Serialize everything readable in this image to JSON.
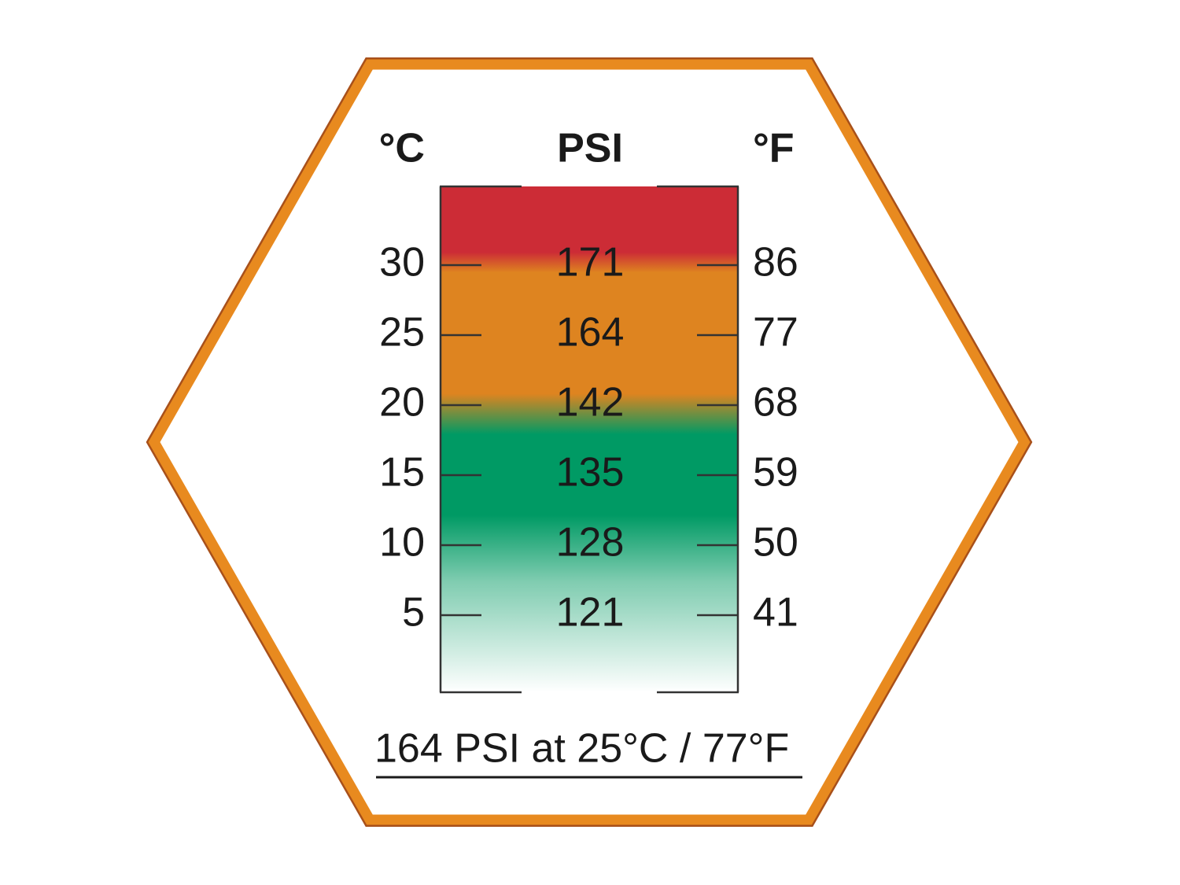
{
  "headers": {
    "celsius": "°C",
    "pressure": "PSI",
    "fahrenheit": "°F"
  },
  "rows": [
    {
      "celsius": 30,
      "psi": 171,
      "fahrenheit": 86
    },
    {
      "celsius": 25,
      "psi": 164,
      "fahrenheit": 77
    },
    {
      "celsius": 20,
      "psi": 142,
      "fahrenheit": 68
    },
    {
      "celsius": 15,
      "psi": 135,
      "fahrenheit": 59
    },
    {
      "celsius": 10,
      "psi": 128,
      "fahrenheit": 50
    },
    {
      "celsius": 5,
      "psi": 121,
      "fahrenheit": 41
    }
  ],
  "footer": "164 PSI at 25°C / 77°F"
}
